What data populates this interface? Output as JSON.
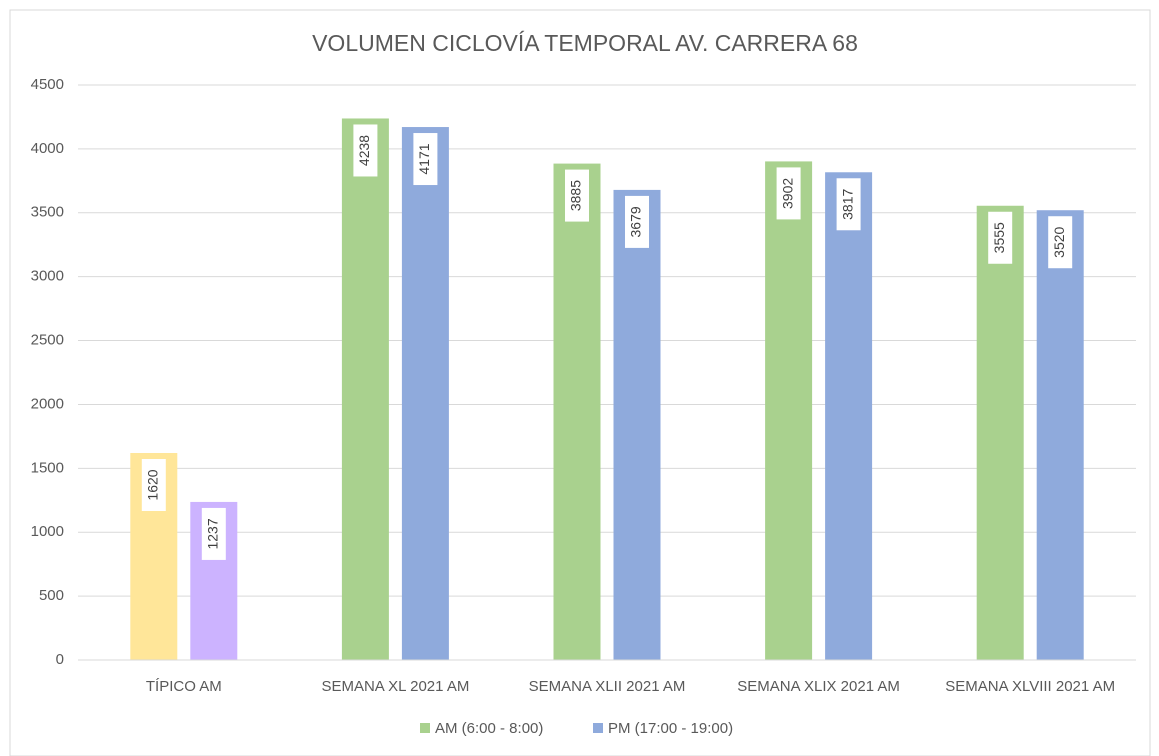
{
  "chart_data": {
    "type": "bar",
    "title": "VOLUMEN CICLOVÍA  TEMPORAL AV. CARRERA 68",
    "categories": [
      "TÍPICO AM",
      "SEMANA XL 2021 AM",
      "SEMANA XLII 2021 AM",
      "SEMANA XLIX 2021 AM",
      "SEMANA XLVIII 2021 AM"
    ],
    "series": [
      {
        "name": "AM (6:00 - 8:00)",
        "color": "#a9d18e",
        "colors": [
          "#ffe699",
          "#a9d18e",
          "#a9d18e",
          "#a9d18e",
          "#a9d18e"
        ],
        "values": [
          1620,
          4238,
          3885,
          3902,
          3555
        ]
      },
      {
        "name": "PM (17:00 - 19:00)",
        "color": "#8faadc",
        "colors": [
          "#ccb3ff",
          "#8faadc",
          "#8faadc",
          "#8faadc",
          "#8faadc"
        ],
        "values": [
          1237,
          4171,
          3679,
          3817,
          3520
        ]
      }
    ],
    "ylim": [
      0,
      4500
    ],
    "yticks": [
      0,
      500,
      1000,
      1500,
      2000,
      2500,
      3000,
      3500,
      4000,
      4500
    ],
    "grid": true,
    "legend": "bottom",
    "data_labels": true
  }
}
